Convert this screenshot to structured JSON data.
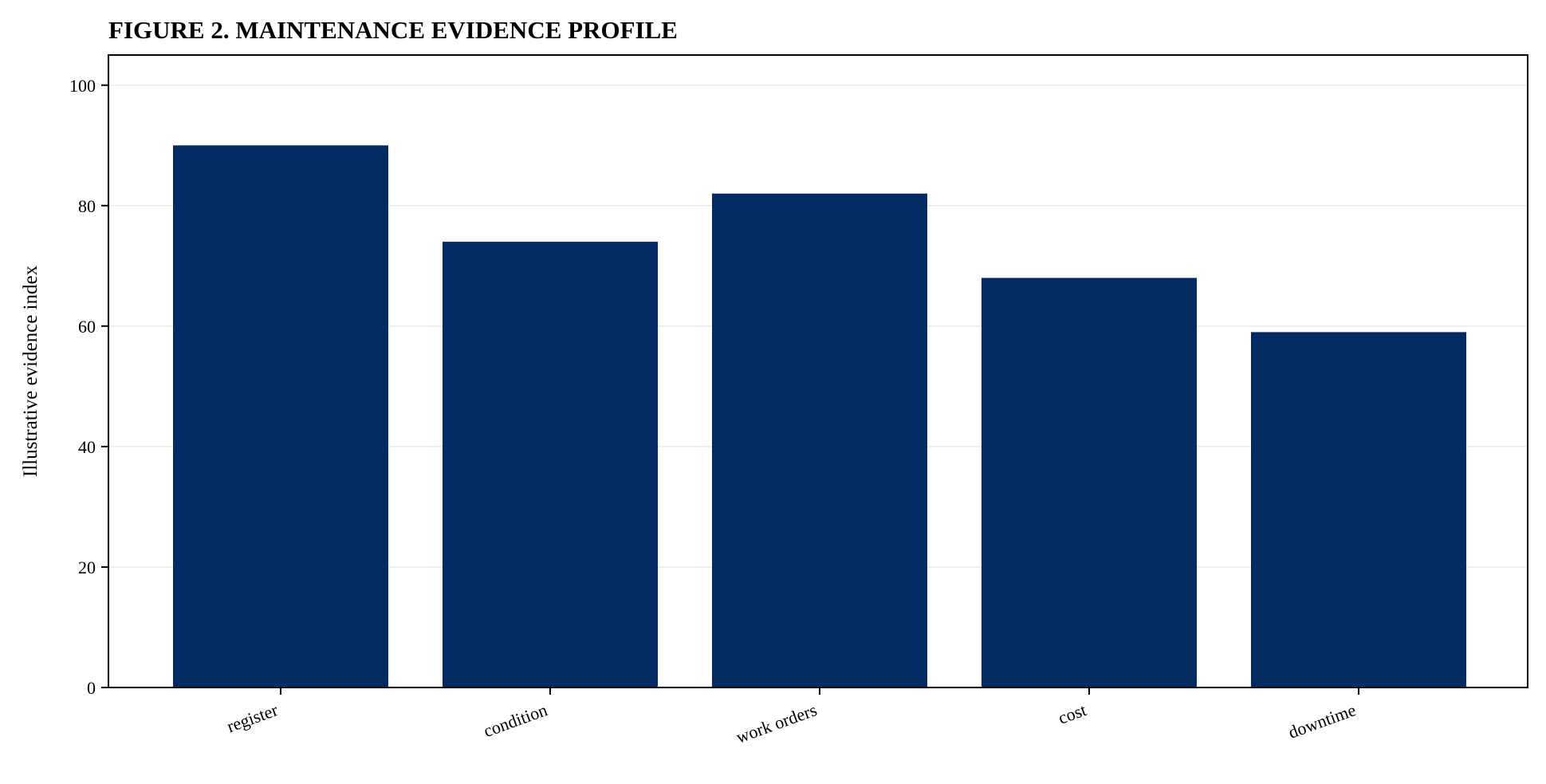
{
  "chart_data": {
    "type": "bar",
    "title": "FIGURE 2. MAINTENANCE EVIDENCE PROFILE",
    "xlabel": "",
    "ylabel": "Illustrative evidence index",
    "categories": [
      "register",
      "condition",
      "work orders",
      "cost",
      "downtime"
    ],
    "values": [
      90,
      74,
      82,
      68,
      59
    ],
    "ylim": [
      0,
      105
    ],
    "yticks": [
      0,
      20,
      40,
      60,
      80,
      100
    ],
    "grid": "horizontal",
    "legend": "none",
    "colors": {
      "bar": "#022a63",
      "grid": "#e6e9ee",
      "axis": "#000000"
    }
  }
}
